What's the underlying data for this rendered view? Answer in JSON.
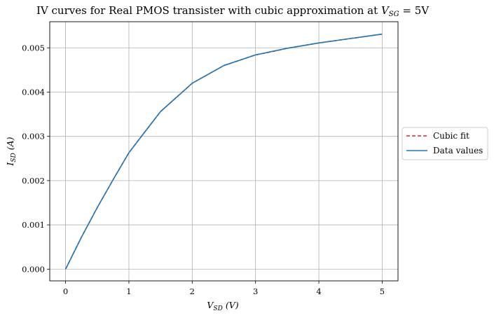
{
  "chart_data": {
    "type": "line",
    "title": "IV curves for Real PMOS transister with cubic approximation at V_SG = 5V",
    "title_text": "IV curves for Real PMOS transister with cubic approximation at ",
    "title_math": {
      "var": "V",
      "sub": "SG",
      "rest": " = 5V"
    },
    "xlabel": {
      "var": "V",
      "sub": "SD",
      "unit": "(V)"
    },
    "ylabel": {
      "var": "I",
      "sub": "SD",
      "unit": "(A)"
    },
    "xlim": [
      -0.25,
      5.25
    ],
    "ylim": [
      -0.000265,
      0.00559
    ],
    "x_ticks": [
      0,
      1,
      2,
      3,
      4,
      5
    ],
    "x_tick_labels": [
      "0",
      "1",
      "2",
      "3",
      "4",
      "5"
    ],
    "y_ticks": [
      0,
      0.001,
      0.002,
      0.003,
      0.004,
      0.005
    ],
    "y_tick_labels": [
      "0.000",
      "0.001",
      "0.002",
      "0.003",
      "0.004",
      "0.005"
    ],
    "grid": true,
    "legend_position": "outside-right",
    "series": [
      {
        "name": "Cubic fit",
        "style": "dashed",
        "color": "#d62728",
        "x": [
          0,
          0.25,
          0.5,
          0.75,
          1.0,
          1.25,
          1.5,
          1.75,
          2.0,
          2.25,
          2.5,
          2.75,
          3.0,
          3.25,
          3.5,
          3.75,
          4.0,
          4.25,
          4.5,
          4.75,
          5.0
        ],
        "y": [
          0,
          0.00072,
          0.00139,
          0.00202,
          0.00263,
          0.0031,
          0.00356,
          0.00388,
          0.0042,
          0.0044,
          0.0046,
          0.00472,
          0.00484,
          0.00491,
          0.00499,
          0.00505,
          0.00511,
          0.00516,
          0.00521,
          0.00526,
          0.00531
        ]
      },
      {
        "name": "Data values",
        "style": "solid",
        "color": "#1f77b4",
        "x": [
          0,
          0.25,
          0.5,
          0.75,
          1.0,
          1.5,
          2.0,
          2.5,
          3.0,
          3.5,
          4.0,
          4.5,
          5.0
        ],
        "y": [
          0,
          0.00072,
          0.00139,
          0.00202,
          0.00263,
          0.00356,
          0.0042,
          0.0046,
          0.00484,
          0.00499,
          0.00511,
          0.00521,
          0.00531
        ]
      }
    ]
  }
}
